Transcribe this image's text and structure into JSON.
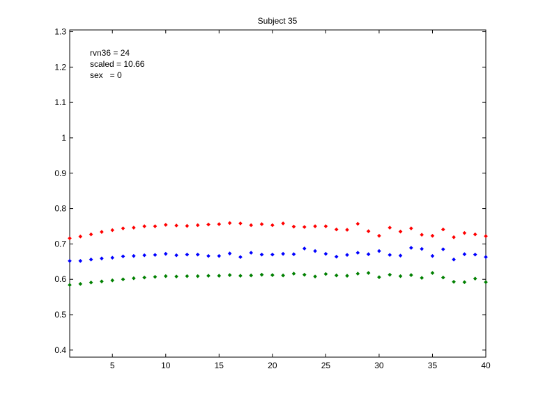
{
  "chart_data": {
    "type": "scatter",
    "title": "Subject 35",
    "xlabel": "",
    "ylabel": "",
    "xlim": [
      1,
      40
    ],
    "ylim": [
      0.38,
      1.305
    ],
    "xticks": [
      5,
      10,
      15,
      20,
      25,
      30,
      35,
      40
    ],
    "xtick_labels": [
      "5",
      "10",
      "15",
      "20",
      "25",
      "30",
      "35",
      "40"
    ],
    "yticks": [
      0.4,
      0.5,
      0.6,
      0.7,
      0.8,
      0.9,
      1.0,
      1.1,
      1.2,
      1.3
    ],
    "ytick_labels": [
      "0.4",
      "0.5",
      "0.6",
      "0.7",
      "0.8",
      "0.9",
      "1",
      "1.1",
      "1.2",
      "1.3"
    ],
    "grid": false,
    "annotations": [
      "rvn36 = 24",
      "scaled = 10.66",
      "sex   = 0"
    ],
    "x": [
      1,
      2,
      3,
      4,
      5,
      6,
      7,
      8,
      9,
      10,
      11,
      12,
      13,
      14,
      15,
      16,
      17,
      18,
      19,
      20,
      21,
      22,
      23,
      24,
      25,
      26,
      27,
      28,
      29,
      30,
      31,
      32,
      33,
      34,
      35,
      36,
      37,
      38,
      39,
      40
    ],
    "series": [
      {
        "color": "#ff0000",
        "values": [
          0.716,
          0.721,
          0.727,
          0.734,
          0.739,
          0.744,
          0.746,
          0.75,
          0.75,
          0.754,
          0.752,
          0.751,
          0.753,
          0.755,
          0.756,
          0.759,
          0.758,
          0.753,
          0.756,
          0.753,
          0.758,
          0.749,
          0.748,
          0.75,
          0.75,
          0.741,
          0.74,
          0.757,
          0.736,
          0.723,
          0.746,
          0.735,
          0.744,
          0.726,
          0.723,
          0.741,
          0.719,
          0.731,
          0.727,
          0.722
        ]
      },
      {
        "color": "#0000ff",
        "values": [
          0.652,
          0.652,
          0.656,
          0.659,
          0.661,
          0.665,
          0.666,
          0.668,
          0.669,
          0.672,
          0.668,
          0.67,
          0.67,
          0.666,
          0.666,
          0.673,
          0.663,
          0.675,
          0.67,
          0.67,
          0.672,
          0.671,
          0.687,
          0.68,
          0.672,
          0.664,
          0.669,
          0.675,
          0.671,
          0.68,
          0.669,
          0.667,
          0.689,
          0.686,
          0.666,
          0.685,
          0.656,
          0.671,
          0.67,
          0.663
        ]
      },
      {
        "color": "#008000",
        "values": [
          0.584,
          0.587,
          0.591,
          0.594,
          0.597,
          0.6,
          0.603,
          0.605,
          0.607,
          0.609,
          0.608,
          0.609,
          0.609,
          0.61,
          0.61,
          0.612,
          0.61,
          0.611,
          0.613,
          0.612,
          0.611,
          0.616,
          0.613,
          0.608,
          0.615,
          0.611,
          0.61,
          0.616,
          0.618,
          0.606,
          0.613,
          0.609,
          0.612,
          0.604,
          0.618,
          0.605,
          0.593,
          0.592,
          0.602,
          0.592
        ]
      }
    ]
  }
}
